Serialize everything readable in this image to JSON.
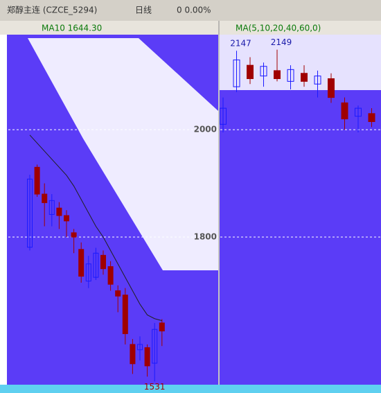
{
  "header": {
    "title": "郑醇主连 (CZCE_5294)",
    "period": "日线",
    "change": "0 0.00%"
  },
  "chart_data": {
    "type": "candlestick",
    "legend_left": "MA10 1644.30",
    "legend_right": "MA(5,10,20,40,60,0)",
    "ylim": [
      1525,
      2177
    ],
    "yticks": [
      1800,
      2000
    ],
    "grid": true,
    "up_color": "#1a1aff",
    "down_color": "#a00000",
    "ma_color": "#202020",
    "left_candles": [
      {
        "o": 1781,
        "h": 1916,
        "l": 1775,
        "c": 1908
      },
      {
        "o": 1930,
        "h": 1935,
        "l": 1875,
        "c": 1880
      },
      {
        "o": 1880,
        "h": 1900,
        "l": 1820,
        "c": 1864
      },
      {
        "o": 1842,
        "h": 1880,
        "l": 1820,
        "c": 1868
      },
      {
        "o": 1854,
        "h": 1865,
        "l": 1815,
        "c": 1840
      },
      {
        "o": 1840,
        "h": 1850,
        "l": 1800,
        "c": 1830
      },
      {
        "o": 1808,
        "h": 1815,
        "l": 1770,
        "c": 1800
      },
      {
        "o": 1777,
        "h": 1790,
        "l": 1715,
        "c": 1727
      },
      {
        "o": 1718,
        "h": 1765,
        "l": 1705,
        "c": 1750
      },
      {
        "o": 1725,
        "h": 1780,
        "l": 1720,
        "c": 1770
      },
      {
        "o": 1766,
        "h": 1775,
        "l": 1730,
        "c": 1741
      },
      {
        "o": 1745,
        "h": 1755,
        "l": 1700,
        "c": 1712
      },
      {
        "o": 1700,
        "h": 1710,
        "l": 1660,
        "c": 1690
      },
      {
        "o": 1692,
        "h": 1705,
        "l": 1600,
        "c": 1620
      },
      {
        "o": 1600,
        "h": 1610,
        "l": 1545,
        "c": 1564
      },
      {
        "o": 1590,
        "h": 1615,
        "l": 1570,
        "c": 1600
      },
      {
        "o": 1594,
        "h": 1600,
        "l": 1540,
        "c": 1560
      },
      {
        "o": 1565,
        "h": 1640,
        "l": 1531,
        "c": 1628
      },
      {
        "o": 1640,
        "h": 1647,
        "l": 1597,
        "c": 1625
      }
    ],
    "ma10": [
      1990,
      1975,
      1960,
      1945,
      1930,
      1915,
      1895,
      1870,
      1845,
      1820,
      1800,
      1775,
      1750,
      1725,
      1700,
      1675,
      1655,
      1648,
      1644.3
    ],
    "right_candles": [
      {
        "o": 2010,
        "h": 2060,
        "l": 1995,
        "c": 2040
      },
      {
        "o": 2080,
        "h": 2147,
        "l": 2070,
        "c": 2130
      },
      {
        "o": 2120,
        "h": 2135,
        "l": 2085,
        "c": 2095
      },
      {
        "o": 2100,
        "h": 2125,
        "l": 2080,
        "c": 2118
      },
      {
        "o": 2110,
        "h": 2149,
        "l": 2090,
        "c": 2095
      },
      {
        "o": 2090,
        "h": 2120,
        "l": 2075,
        "c": 2112
      },
      {
        "o": 2105,
        "h": 2120,
        "l": 2080,
        "c": 2090
      },
      {
        "o": 2085,
        "h": 2110,
        "l": 2060,
        "c": 2100
      },
      {
        "o": 2095,
        "h": 2105,
        "l": 2050,
        "c": 2060
      },
      {
        "o": 2050,
        "h": 2060,
        "l": 2000,
        "c": 2020
      },
      {
        "o": 2025,
        "h": 2045,
        "l": 1995,
        "c": 2040
      },
      {
        "o": 2030,
        "h": 2040,
        "l": 2005,
        "c": 2015
      }
    ],
    "marked_highs": [
      2147,
      2149
    ],
    "marked_low": 1531
  }
}
